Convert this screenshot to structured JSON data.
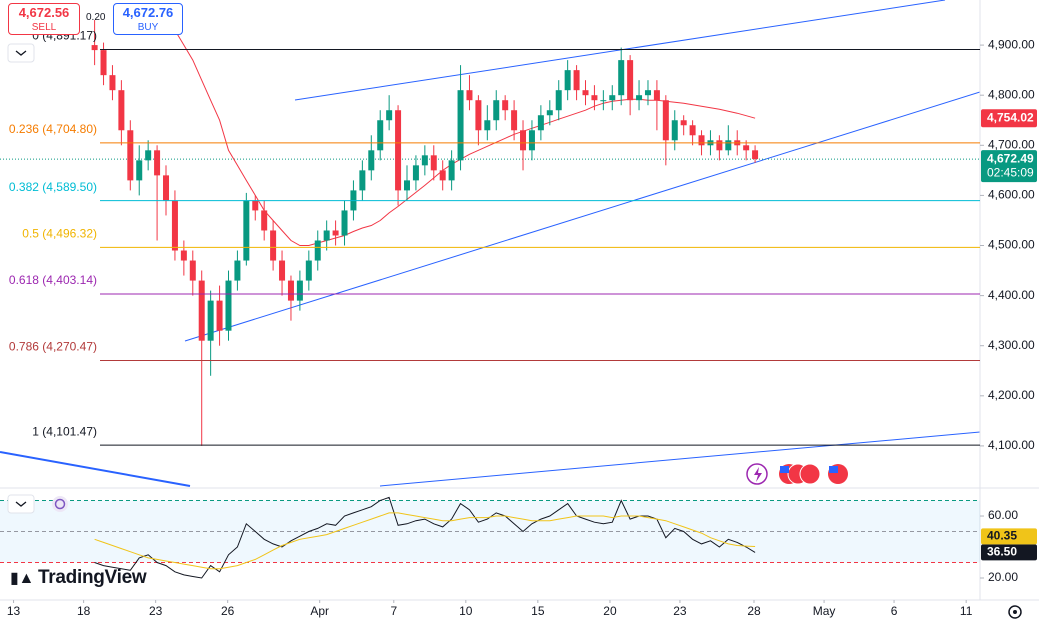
{
  "ui": {
    "sell_price": "4,672.56",
    "sell_label": "SELL",
    "spread": "0.20",
    "buy_price": "4,672.76",
    "buy_label": "BUY",
    "logo": "TradingView"
  },
  "chart_data": [
    {
      "type": "candlestick",
      "up_color": "#089981",
      "down_color": "#f23645",
      "open": [
        4900,
        4890,
        4840,
        4810,
        4730,
        4630,
        4670,
        4690,
        4640,
        4590,
        4490,
        4470,
        4430,
        4310,
        4390,
        4330,
        4430,
        4470,
        4590,
        4570,
        4530,
        4470,
        4430,
        4390,
        4430,
        4470,
        4510,
        4530,
        4520,
        4570,
        4610,
        4650,
        4690,
        4750,
        4770,
        4610,
        4630,
        4660,
        4680,
        4650,
        4630,
        4670,
        4810,
        4790,
        4730,
        4750,
        4790,
        4770,
        4730,
        4690,
        4730,
        4760,
        4770,
        4810,
        4850,
        4810,
        4800,
        4790,
        4790,
        4800,
        4870,
        4790,
        4800,
        4810,
        4790,
        4710,
        4750,
        4740,
        4720,
        4700,
        4710,
        4690,
        4710,
        4700,
        4690
      ],
      "high": [
        4950,
        4905,
        4860,
        4830,
        4750,
        4700,
        4710,
        4700,
        4660,
        4610,
        4510,
        4490,
        4450,
        4410,
        4420,
        4450,
        4490,
        4605,
        4600,
        4590,
        4550,
        4490,
        4440,
        4450,
        4490,
        4530,
        4550,
        4550,
        4590,
        4630,
        4670,
        4720,
        4770,
        4800,
        4780,
        4660,
        4680,
        4700,
        4700,
        4670,
        4690,
        4860,
        4840,
        4800,
        4780,
        4810,
        4800,
        4790,
        4750,
        4750,
        4780,
        4790,
        4830,
        4870,
        4860,
        4830,
        4820,
        4810,
        4820,
        4895,
        4880,
        4830,
        4830,
        4830,
        4800,
        4770,
        4760,
        4750,
        4730,
        4730,
        4720,
        4740,
        4730,
        4710,
        4700
      ],
      "low": [
        4860,
        4820,
        4790,
        4700,
        4610,
        4600,
        4650,
        4510,
        4560,
        4470,
        4440,
        4400,
        4100,
        4240,
        4300,
        4310,
        4410,
        4460,
        4550,
        4510,
        4450,
        4400,
        4350,
        4370,
        4410,
        4450,
        4490,
        4500,
        4500,
        4550,
        4590,
        4630,
        4670,
        4730,
        4580,
        4590,
        4610,
        4640,
        4630,
        4610,
        4610,
        4650,
        4770,
        4700,
        4710,
        4730,
        4750,
        4710,
        4650,
        4670,
        4710,
        4740,
        4750,
        4790,
        4790,
        4780,
        4770,
        4770,
        4770,
        4780,
        4760,
        4770,
        4780,
        4730,
        4660,
        4690,
        4720,
        4700,
        4680,
        4680,
        4670,
        4680,
        4680,
        4670,
        4665
      ],
      "close": [
        4890,
        4840,
        4810,
        4730,
        4630,
        4670,
        4690,
        4640,
        4590,
        4490,
        4470,
        4430,
        4310,
        4390,
        4330,
        4430,
        4470,
        4590,
        4570,
        4530,
        4470,
        4430,
        4390,
        4430,
        4470,
        4510,
        4530,
        4520,
        4570,
        4610,
        4650,
        4690,
        4750,
        4770,
        4610,
        4630,
        4660,
        4680,
        4650,
        4630,
        4670,
        4810,
        4790,
        4730,
        4750,
        4790,
        4770,
        4730,
        4690,
        4730,
        4760,
        4770,
        4810,
        4850,
        4810,
        4800,
        4790,
        4790,
        4800,
        4870,
        4790,
        4800,
        4810,
        4790,
        4710,
        4750,
        4740,
        4720,
        4700,
        4710,
        4690,
        4710,
        4700,
        4690,
        4672.49
      ],
      "moving_average": {
        "color": "#f23645",
        "values": [
          null,
          null,
          null,
          null,
          null,
          null,
          null,
          null,
          4960,
          4930,
          4900,
          4870,
          4830,
          4790,
          4750,
          4690,
          4660,
          4630,
          4600,
          4570,
          4550,
          4530,
          4510,
          4500,
          4500,
          4505,
          4510,
          4515,
          4520,
          4528,
          4535,
          4540,
          4550,
          4565,
          4578,
          4592,
          4606,
          4620,
          4635,
          4650,
          4662,
          4672,
          4682,
          4690,
          4698,
          4706,
          4714,
          4722,
          4728,
          4734,
          4740,
          4746,
          4752,
          4758,
          4764,
          4770,
          4778,
          4784,
          4788,
          4790,
          4792,
          4792,
          4790,
          4790,
          4788,
          4786,
          4784,
          4781,
          4778,
          4775,
          4772,
          4768,
          4764,
          4759,
          4754.02
        ]
      },
      "ma_tag": {
        "value": 4754.02,
        "label": "4,754.02"
      },
      "last_price": {
        "value": 4672.49,
        "label": "4,672.49"
      },
      "countdown": "02:45:09",
      "fib_levels": [
        {
          "value": 4891.17,
          "label": "0 (4,891.17)",
          "color": "#131722"
        },
        {
          "value": 4704.8,
          "label": "0.236 (4,704.80)",
          "color": "#f57c00"
        },
        {
          "value": 4589.5,
          "label": "0.382 (4,589.50)",
          "color": "#00bcd4"
        },
        {
          "value": 4496.32,
          "label": "0.5 (4,496.32)",
          "color": "#f0b400"
        },
        {
          "value": 4403.14,
          "label": "0.618 (4,403.14)",
          "color": "#9c27b0"
        },
        {
          "value": 4270.47,
          "label": "0.786 (4,270.47)",
          "color": "#b23a3a"
        },
        {
          "value": 4101.47,
          "label": "1 (4,101.47)",
          "color": "#131722"
        }
      ],
      "xlim": [
        -10.6,
        99.2
      ],
      "xticks": [
        {
          "value": -9.08,
          "label": "13"
        },
        {
          "value": -1.23,
          "label": "18"
        },
        {
          "value": 6.84,
          "label": "23"
        },
        {
          "value": 14.91,
          "label": "26"
        },
        {
          "value": 25.22,
          "label": "Apr"
        },
        {
          "value": 33.52,
          "label": "7"
        },
        {
          "value": 41.59,
          "label": "10"
        },
        {
          "value": 49.66,
          "label": "15"
        },
        {
          "value": 57.74,
          "label": "20"
        },
        {
          "value": 65.58,
          "label": "23"
        },
        {
          "value": 73.88,
          "label": "28"
        },
        {
          "value": 81.73,
          "label": "May"
        },
        {
          "value": 89.57,
          "label": "6"
        },
        {
          "value": 97.65,
          "label": "11"
        }
      ],
      "ylim": [
        4020,
        4990
      ],
      "yticks": [
        {
          "value": 4900,
          "label": "4,900.00"
        },
        {
          "value": 4800,
          "label": "4,800.00"
        },
        {
          "value": 4700,
          "label": "4,700.00"
        },
        {
          "value": 4600,
          "label": "4,600.00"
        },
        {
          "value": 4500,
          "label": "4,500.00"
        },
        {
          "value": 4400,
          "label": "4,400.00"
        },
        {
          "value": 4300,
          "label": "4,300.00"
        },
        {
          "value": 4200,
          "label": "4,200.00"
        },
        {
          "value": 4100,
          "label": "4,100.00"
        }
      ]
    },
    {
      "type": "line",
      "xlim": [
        -10.6,
        99.2
      ],
      "ylim": [
        5.8,
        76.8
      ],
      "yticks": [
        {
          "value": 60,
          "label": "60.00"
        },
        {
          "value": 20,
          "label": "20.00"
        }
      ],
      "levels": [
        {
          "value": 70,
          "color": "#089981"
        },
        {
          "value": 50,
          "color": "#9598a1"
        },
        {
          "value": 30,
          "color": "#f23645"
        }
      ],
      "band_color": "#2196f3",
      "series": [
        {
          "color": "#131722",
          "values": [
            30,
            28,
            27,
            26,
            25,
            33,
            35,
            30,
            28,
            24,
            22,
            21,
            20,
            28,
            24,
            35,
            40,
            55,
            50,
            45,
            42,
            40,
            44,
            47,
            50,
            52,
            55,
            54,
            60,
            62,
            64,
            66,
            70,
            72,
            54,
            55,
            57,
            58,
            55,
            53,
            58,
            68,
            64,
            56,
            58,
            62,
            60,
            55,
            50,
            55,
            58,
            60,
            64,
            68,
            60,
            58,
            56,
            55,
            56,
            70,
            58,
            60,
            60,
            58,
            46,
            52,
            50,
            45,
            42,
            44,
            40,
            45,
            43,
            40,
            36.5
          ]
        },
        {
          "color": "#f0c419",
          "values": [
            45,
            43,
            41,
            39,
            37,
            35,
            33,
            32,
            31,
            30,
            29,
            28,
            27,
            26,
            26,
            27,
            28,
            30,
            32,
            35,
            38,
            41,
            43,
            45,
            46,
            47,
            48,
            50,
            52,
            54,
            56,
            58,
            60,
            62,
            62,
            61,
            60,
            59,
            58,
            57,
            57,
            58,
            59,
            59,
            59,
            60,
            60,
            59,
            58,
            57,
            57,
            57,
            58,
            59,
            60,
            60,
            60,
            60,
            59,
            60,
            60,
            60,
            59,
            58,
            57,
            55,
            53,
            51,
            49,
            46,
            44,
            42,
            41,
            40.6,
            40.35
          ]
        }
      ],
      "series_tags": [
        {
          "value": 36.5,
          "label": "36.50"
        },
        {
          "value": 40.35,
          "label": "40.35"
        }
      ]
    }
  ]
}
